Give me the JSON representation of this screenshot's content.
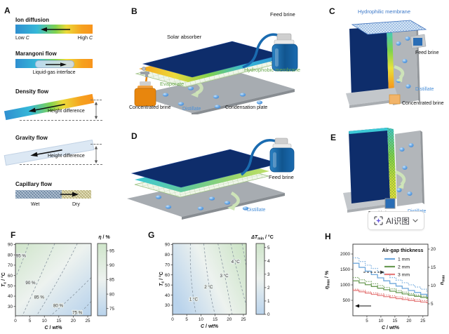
{
  "panels": {
    "a": "A",
    "b": "B",
    "c": "C",
    "d": "D",
    "e": "E",
    "f": "F",
    "g": "G",
    "h": "H"
  },
  "colors": {
    "distillate_text": "#4a90d9",
    "membrane_text": "#6aa84f",
    "hydrophilic_text": "#3c78c8",
    "absorber_navy": "#0e2d6b",
    "feed_brine_blue": "#1a6bb0",
    "concentrated_orange": "#e8860d",
    "plate_gray": "#a7acb1"
  },
  "panel_a": {
    "blocks": [
      {
        "title": "Ion diffusion",
        "left": {
          "pre": "Low ",
          "var": "C"
        },
        "right": {
          "pre": "High ",
          "var": "C"
        }
      },
      {
        "title": "Marangoni flow",
        "caption": "Liquid-gas interface"
      },
      {
        "title": "Density flow",
        "caption": "Height difference"
      },
      {
        "title": "Gravity flow",
        "caption": "Height difference"
      },
      {
        "title": "Capillary flow",
        "left_label": "Wet",
        "right_label": "Dry"
      }
    ]
  },
  "panel_b": {
    "solar_absorber": "Solar absorber",
    "feed_brine": "Feed brine",
    "hydrophobic_membrane": "Hydrophobic membrane",
    "evaporate": "Evaporate",
    "concentrated_brine": "Concentrated brine",
    "distillate": "Distillate",
    "condensation_plate": "Condensation plate"
  },
  "panel_c": {
    "hydrophilic_membrane": "Hydrophilic membrane",
    "feed_brine": "Feed brine",
    "distillate": "Distillate",
    "concentrated_brine": "Concentrated brine"
  },
  "panel_d": {
    "feed_brine": "Feed brine",
    "distillate": "Distillate"
  },
  "panel_e": {
    "feed_brine": "Feed brine",
    "distillate": "Distillate"
  },
  "ai_button": {
    "label": "AI识图"
  },
  "chart_data": [
    {
      "id": "F",
      "type": "contour",
      "xlabel": {
        "var": "C",
        "sub": "",
        "unit": " / wt%"
      },
      "ylabel": {
        "var": "T",
        "sub": "c",
        "unit": " / °C"
      },
      "xticks": [
        0,
        5,
        10,
        15,
        20,
        25
      ],
      "yticks": [
        30,
        40,
        50,
        60,
        70,
        80,
        90
      ],
      "xlim": [
        0,
        26.2
      ],
      "ylim": [
        21,
        91
      ],
      "colormap": {
        "low": "#b9d3ec",
        "mid": "#edf2ef",
        "high": "#cfe5ca"
      },
      "colorbar": {
        "label": {
          "var": "η",
          "sub": "",
          "unit": " / %"
        },
        "ticks": [
          75,
          80,
          85,
          90,
          95
        ],
        "range": [
          72.5,
          97.5
        ]
      },
      "contours": [
        {
          "label": "95 %",
          "points": [
            [
              4.6,
              91
            ],
            [
              2.4,
              74
            ],
            [
              0,
              58
            ]
          ],
          "label_at": [
            1.9,
            79
          ]
        },
        {
          "label": "90 %",
          "points": [
            [
              13.6,
              91
            ],
            [
              8.7,
              60
            ],
            [
              2.4,
              21
            ]
          ],
          "label_at": [
            5.2,
            53
          ]
        },
        {
          "label": "85 %",
          "points": [
            [
              21.4,
              91
            ],
            [
              15,
              57
            ],
            [
              7.3,
              21
            ]
          ],
          "label_at": [
            8.2,
            39
          ]
        },
        {
          "label": "80 %",
          "points": [
            [
              26.2,
              58
            ],
            [
              18.9,
              38
            ],
            [
              12.1,
              21
            ]
          ],
          "label_at": [
            14.8,
            31
          ]
        },
        {
          "label": "75 %",
          "points": [
            [
              26.2,
              35
            ],
            [
              23,
              26
            ],
            [
              19.9,
              21
            ]
          ],
          "label_at": [
            21.4,
            24
          ]
        }
      ]
    },
    {
      "id": "G",
      "type": "contour",
      "xlabel": {
        "var": "C",
        "sub": "",
        "unit": " / wt%"
      },
      "ylabel": {
        "var": "T",
        "sub": "c",
        "unit": " / °C"
      },
      "xticks": [
        0,
        5,
        10,
        15,
        20,
        25
      ],
      "yticks": [
        30,
        40,
        50,
        60,
        70,
        80,
        90
      ],
      "xlim": [
        0,
        26
      ],
      "ylim": [
        21,
        91
      ],
      "colormap": {
        "low": "#b9d3ec",
        "mid": "#edf2ef",
        "high": "#cfe5ca"
      },
      "colorbar": {
        "label": {
          "var": "ΔT",
          "sub": "min",
          "unit": " / °C"
        },
        "ticks": [
          0,
          1,
          2,
          3,
          4,
          5
        ],
        "range": [
          0,
          5.3
        ]
      },
      "contours": [
        {
          "label": "1 °C",
          "points": [
            [
              6.3,
              91
            ],
            [
              6.6,
              56
            ],
            [
              8.3,
              21
            ]
          ],
          "label_at": [
            7.4,
            36
          ]
        },
        {
          "label": "2 °C",
          "points": [
            [
              11,
              91
            ],
            [
              12.9,
              49
            ],
            [
              15,
              21
            ]
          ],
          "label_at": [
            12.7,
            48
          ]
        },
        {
          "label": "3 °C",
          "points": [
            [
              16,
              91
            ],
            [
              18.3,
              61
            ],
            [
              21,
              21
            ]
          ],
          "label_at": [
            18.2,
            59
          ]
        },
        {
          "label": "4 °C",
          "points": [
            [
              20.5,
              91
            ],
            [
              22.6,
              66
            ],
            [
              26,
              30
            ]
          ],
          "label_at": [
            22.2,
            73
          ]
        },
        {
          "label": "",
          "points": [
            [
              24.5,
              91
            ],
            [
              25.3,
              79
            ],
            [
              26,
              68
            ]
          ],
          "label_at": null
        }
      ]
    },
    {
      "id": "H",
      "type": "step",
      "xlabel": {
        "var": "C",
        "sub": "",
        "unit": " / wt%"
      },
      "ylabel_left": {
        "var": "η",
        "sub": "max",
        "unit": " / %"
      },
      "ylabel_right": {
        "var": "n",
        "sub": "max",
        "unit": ""
      },
      "xticks": [
        5,
        10,
        15,
        20,
        25
      ],
      "yticks_left": [
        500,
        1000,
        1500,
        2000
      ],
      "yticks_right": [
        5,
        10,
        15,
        20
      ],
      "xlim": [
        0,
        26.8
      ],
      "legend": {
        "title": "Air-gap thickness",
        "entries": [
          {
            "label": "1 mm",
            "color": "#6fa8dc"
          },
          {
            "label": "2 mm",
            "color": "#699a53"
          },
          {
            "label": "3 mm",
            "color": "#e57d7d"
          }
        ]
      },
      "series": [
        {
          "name": "1 mm solid",
          "axis": "left",
          "style": "solid",
          "color": "#6fa8dc",
          "x_start": 0,
          "x_step": 2.2,
          "values": [
            1700,
            1567,
            1445,
            1332,
            1228,
            1132,
            1044,
            962,
            887,
            818,
            754,
            695,
            641
          ]
        },
        {
          "name": "1 mm dotted",
          "axis": "right",
          "style": "dotted",
          "color": "#6fa8dc",
          "x_start": 0,
          "x_step": 2.2,
          "values": [
            17.6,
            16.6,
            15.6,
            14.7,
            13.8,
            13.0,
            12.2,
            11.5,
            10.8,
            10.2,
            9.6,
            9.0,
            8.5
          ]
        },
        {
          "name": "2 mm solid",
          "axis": "left",
          "style": "solid",
          "color": "#699a53",
          "x_start": 0,
          "x_step": 2.2,
          "values": [
            1130,
            1066,
            1005,
            948,
            894,
            843,
            795,
            750,
            707,
            667,
            629,
            593,
            560
          ]
        },
        {
          "name": "2 mm dotted",
          "axis": "right",
          "style": "dotted",
          "color": "#699a53",
          "x_start": 0,
          "x_step": 2.2,
          "values": [
            12.2,
            11.6,
            11.1,
            10.5,
            10.0,
            9.5,
            9.1,
            8.6,
            8.2,
            7.8,
            7.4,
            7.1,
            6.8
          ]
        },
        {
          "name": "3 mm solid",
          "axis": "left",
          "style": "solid",
          "color": "#e57d7d",
          "x_start": 0,
          "x_step": 2.2,
          "values": [
            820,
            776,
            733,
            694,
            656,
            620,
            587,
            555,
            525,
            496,
            469,
            444,
            420
          ]
        },
        {
          "name": "3 mm dotted",
          "axis": "right",
          "style": "dotted",
          "color": "#e57d7d",
          "x_start": 0,
          "x_step": 2.2,
          "values": [
            9.0,
            8.7,
            8.3,
            8.0,
            7.7,
            7.4,
            7.2,
            6.9,
            6.6,
            6.4,
            6.2,
            5.9,
            5.7
          ]
        }
      ],
      "axis_arrows": [
        {
          "style": "solid",
          "direction": "left"
        },
        {
          "style": "dashed",
          "direction": "right"
        }
      ]
    }
  ]
}
